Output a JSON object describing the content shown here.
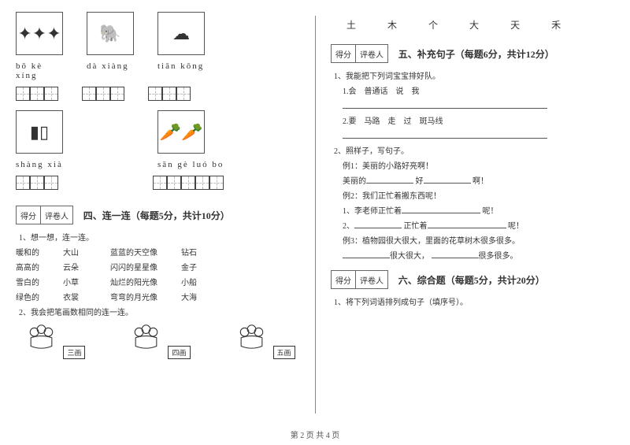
{
  "left": {
    "items": [
      {
        "icon": "⭐",
        "pinyin": "bō kè xíng",
        "cells": 3
      },
      {
        "icon": "🐘",
        "pinyin": "dà xiàng",
        "cells": 3
      },
      {
        "icon": "☁️",
        "pinyin": "tiān kōng",
        "cells": 3
      },
      {
        "icon": "📚",
        "pinyin": "shàng xià",
        "cells": 3
      },
      {
        "icon": "🥕",
        "pinyin": "sān gè luó bo",
        "cells": 5
      }
    ],
    "score_label1": "得分",
    "score_label2": "评卷人",
    "sec4_title": "四、连一连（每题5分，共计10分）",
    "q41": "1、想一想，连一连。",
    "matches": [
      {
        "a": "暖和的",
        "b": "大山",
        "c": "蓝蓝的天空像",
        "d": "钻石"
      },
      {
        "a": "高高的",
        "b": "云朵",
        "c": "闪闪的星星像",
        "d": "金子"
      },
      {
        "a": "雪白的",
        "b": "小草",
        "c": "灿烂的阳光像",
        "d": "小船"
      },
      {
        "a": "绿色的",
        "b": "衣裳",
        "c": "弯弯的月光像",
        "d": "大海"
      }
    ],
    "q42": "2、我会把笔画数相同的连一连。",
    "flowers": [
      "三画",
      "四画",
      "五画"
    ]
  },
  "right": {
    "chars": [
      "土",
      "木",
      "个",
      "大",
      "天",
      "禾"
    ],
    "score_label1": "得分",
    "score_label2": "评卷人",
    "sec5_title": "五、补充句子（每题6分，共计12分）",
    "q51": "1、我能把下列词宝宝排好队。",
    "q51a": "1.会　普通话　说　我",
    "q51b": "2.要　马路　走　过　斑马线",
    "q52": "2、照样子，写句子。",
    "ex1": "例1：美丽的小路好亮啊！",
    "ex1_fill_a": "美丽的",
    "ex1_fill_b": "好",
    "ex1_fill_c": "啊！",
    "ex2": "例2：我们正忙着搬东西呢！",
    "ex2_1a": "1、李老师正忙着",
    "ex2_1b": "呢！",
    "ex2_2a": "2、",
    "ex2_2b": "正忙着",
    "ex2_2c": "呢！",
    "ex3": "例3：植物园很大很大，里面的花草树木很多很多。",
    "ex3_a": "很大很大，",
    "ex3_b": "很多很多。",
    "sec6_title": "六、综合题（每题5分，共计20分）",
    "q61": "1、将下列词语排列成句子（填序号）。"
  },
  "footer": "第 2 页 共 4 页"
}
